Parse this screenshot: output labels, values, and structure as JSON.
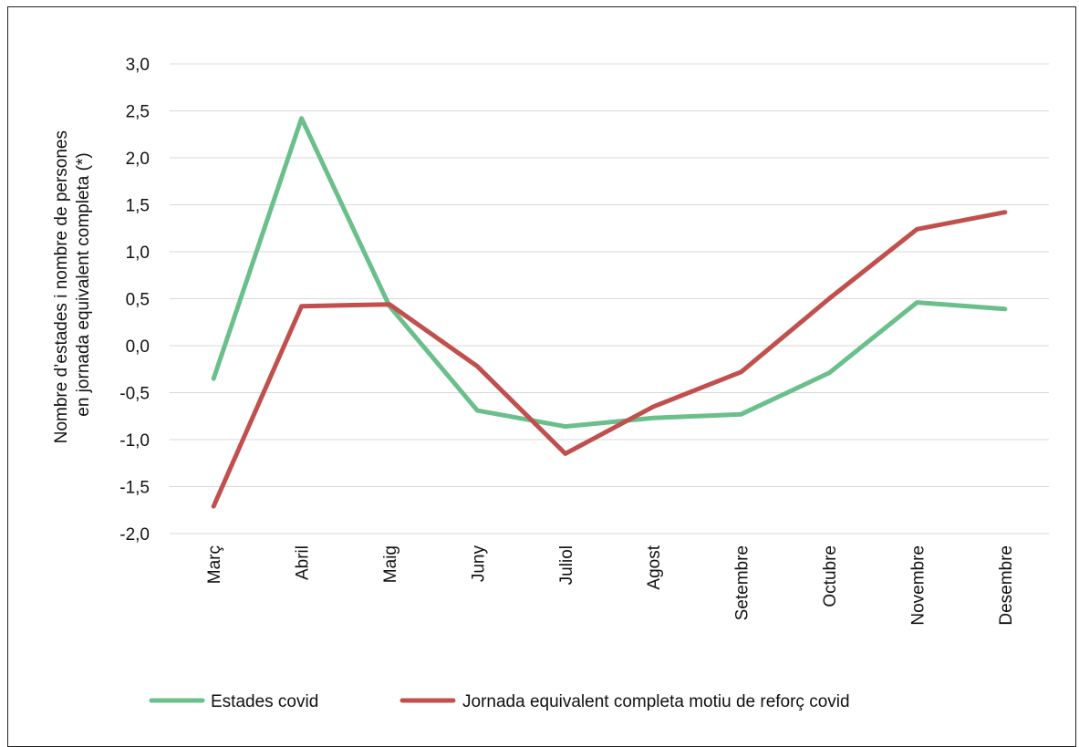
{
  "chart_data": {
    "type": "line",
    "ylabel_lines": [
      "Nombre d’estades i nombre de persones",
      "en jornada equivalent completa (*)"
    ],
    "categories": [
      "Març",
      "Abril",
      "Maig",
      "Juny",
      "Juliol",
      "Agost",
      "Setembre",
      "Octubre",
      "Novembre",
      "Desembre"
    ],
    "yticks": [
      "3,0",
      "2,5",
      "2,0",
      "1,5",
      "1,0",
      "0,5",
      "0,0",
      "-0,5",
      "-1,0",
      "-1,5",
      "-2,0"
    ],
    "ylim": [
      -2.0,
      3.0
    ],
    "grid": true,
    "legend_position": "bottom",
    "series": [
      {
        "name": "Estades covid",
        "color": "#6abf8b",
        "values": [
          -0.35,
          2.42,
          0.42,
          -0.69,
          -0.86,
          -0.77,
          -0.73,
          -0.29,
          0.46,
          0.39
        ]
      },
      {
        "name": "Jornada equivalent completa motiu de reforç covid",
        "color": "#c0504d",
        "values": [
          -1.71,
          0.42,
          0.44,
          -0.22,
          -1.15,
          -0.65,
          -0.28,
          0.5,
          1.24,
          1.42
        ]
      }
    ]
  }
}
